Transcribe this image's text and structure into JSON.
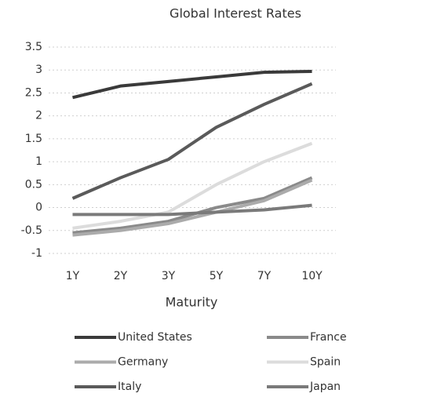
{
  "chart_data": {
    "type": "line",
    "title": "Global Interest Rates",
    "x_label": "Maturity",
    "categories": [
      "1Y",
      "2Y",
      "3Y",
      "5Y",
      "7Y",
      "10Y"
    ],
    "series": [
      {
        "name": "United States",
        "color": "#3a3a3a",
        "values": [
          2.4,
          2.65,
          2.75,
          2.85,
          2.95,
          2.97
        ]
      },
      {
        "name": "France",
        "color": "#8a8a8a",
        "values": [
          -0.55,
          -0.45,
          -0.3,
          0.0,
          0.2,
          0.65
        ]
      },
      {
        "name": "Germany",
        "color": "#ababab",
        "values": [
          -0.6,
          -0.5,
          -0.35,
          -0.1,
          0.15,
          0.6
        ]
      },
      {
        "name": "Spain",
        "color": "#dcdcdc",
        "values": [
          -0.45,
          -0.3,
          -0.1,
          0.5,
          1.0,
          1.4
        ]
      },
      {
        "name": "Italy",
        "color": "#5a5a5a",
        "values": [
          0.2,
          0.65,
          1.05,
          1.75,
          2.25,
          2.7
        ]
      },
      {
        "name": "Japan",
        "color": "#7a7a7a",
        "values": [
          -0.15,
          -0.15,
          -0.15,
          -0.1,
          -0.05,
          0.05
        ]
      }
    ],
    "ylim": [
      -1,
      3.5
    ],
    "yticks": [
      -1,
      -0.5,
      0,
      0.5,
      1,
      1.5,
      2,
      2.5,
      3,
      3.5
    ],
    "grid": true,
    "legend": "bottom"
  }
}
